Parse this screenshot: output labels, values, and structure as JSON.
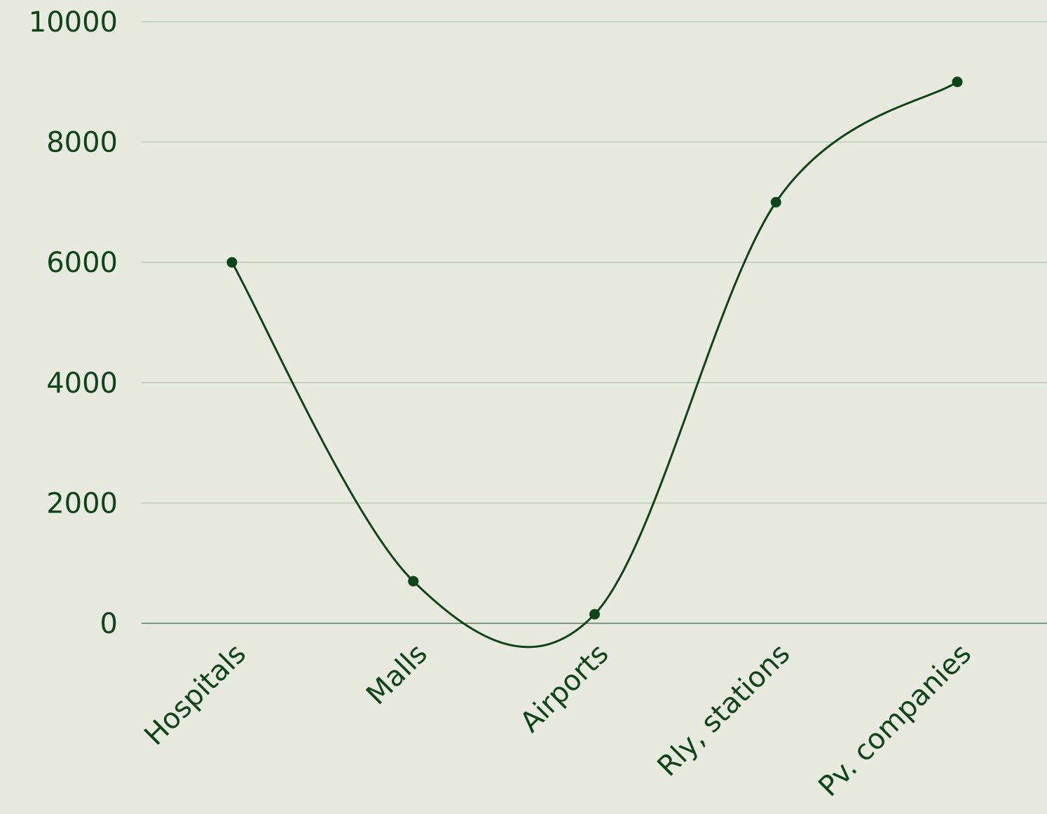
{
  "colors": {
    "background": "#e9eadf",
    "line": "#0d4418",
    "text": "#0d4418",
    "grid": "#b3c2ac",
    "baseline": "#5e7d60"
  },
  "chart_data": {
    "type": "line",
    "smooth": true,
    "markers": true,
    "categories": [
      "Hospitals",
      "Malls",
      "Airports",
      "Rly, stations",
      "Pv. companies"
    ],
    "series": [
      {
        "values": [
          6000,
          700,
          150,
          7000,
          9000
        ]
      }
    ],
    "ylim": [
      0,
      10000
    ],
    "yticks": [
      0,
      2000,
      4000,
      6000,
      8000,
      10000
    ],
    "ytick_labels": [
      "0",
      "2000",
      "4000",
      "6000",
      "8000",
      "10000"
    ],
    "grid": true,
    "legend": "none",
    "title": "",
    "xlabel": "",
    "ylabel": ""
  }
}
